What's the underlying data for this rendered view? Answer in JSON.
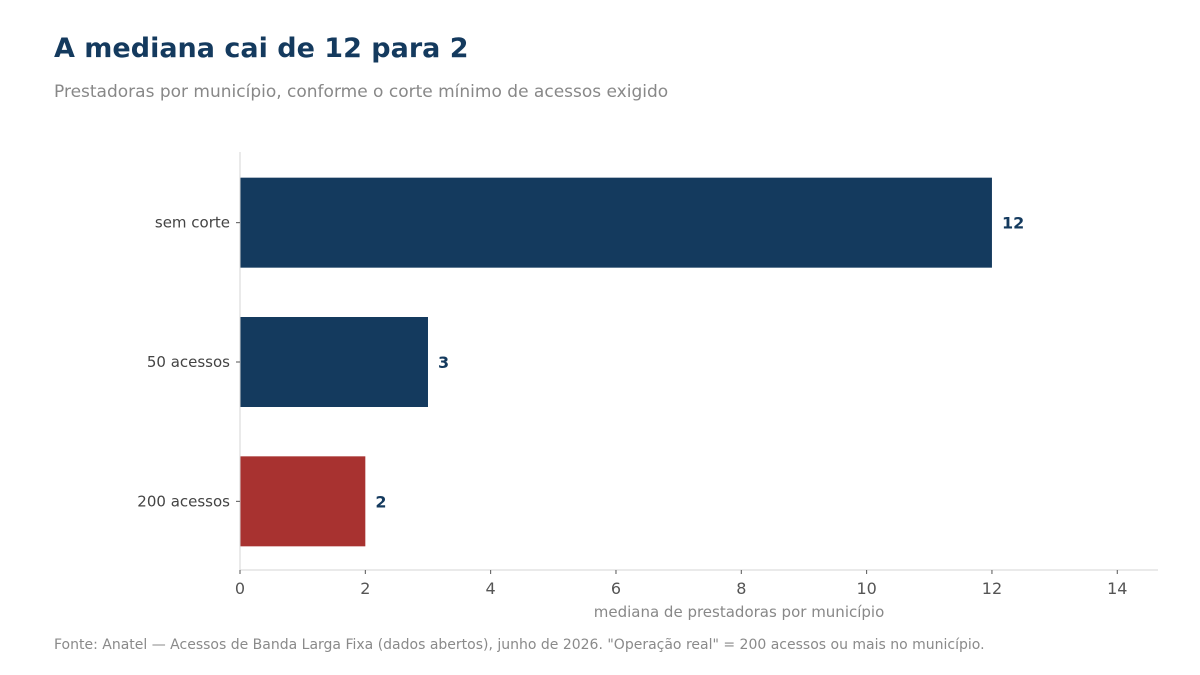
{
  "header": {
    "title": "A mediana cai de 12 para 2",
    "subtitle": "Prestadoras por município, conforme o corte mínimo de acessos exigido"
  },
  "footer": {
    "source": "Fonte: Anatel — Acessos de Banda Larga Fixa (dados abertos), junho de 2026. \"Operação real\" = 200 acessos ou mais no município."
  },
  "colors": {
    "primary": "#143a5e",
    "highlight": "#a83230",
    "axis": "#d6d6d6"
  },
  "chart_data": {
    "type": "bar",
    "orientation": "horizontal",
    "categories": [
      "sem corte",
      "50 acessos",
      "200 acessos"
    ],
    "values": [
      12,
      3,
      2
    ],
    "value_labels": [
      "12",
      "3",
      "2"
    ],
    "highlight_index": 2,
    "xlabel": "mediana de prestadoras por município",
    "ylabel": "",
    "xlim": [
      0,
      14.65
    ],
    "xticks": [
      0,
      2,
      4,
      6,
      8,
      10,
      12,
      14
    ],
    "grid": false,
    "legend": "none"
  }
}
